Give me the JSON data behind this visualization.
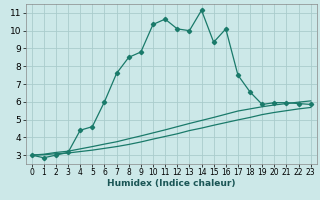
{
  "xlabel": "Humidex (Indice chaleur)",
  "background_color": "#cce8e8",
  "grid_color": "#aacccc",
  "line_color": "#1a7a6a",
  "xlim": [
    -0.5,
    23.5
  ],
  "ylim": [
    2.5,
    11.5
  ],
  "xticks": [
    0,
    1,
    2,
    3,
    4,
    5,
    6,
    7,
    8,
    9,
    10,
    11,
    12,
    13,
    14,
    15,
    16,
    17,
    18,
    19,
    20,
    21,
    22,
    23
  ],
  "yticks": [
    3,
    4,
    5,
    6,
    7,
    8,
    9,
    10,
    11
  ],
  "line1_x": [
    0,
    1,
    2,
    3,
    4,
    5,
    6,
    7,
    8,
    9,
    10,
    11,
    12,
    13,
    14,
    15,
    16,
    17,
    18,
    19,
    20,
    21,
    22,
    23
  ],
  "line1_y": [
    3.0,
    2.85,
    3.0,
    3.15,
    4.4,
    4.6,
    6.0,
    7.6,
    8.5,
    8.8,
    10.35,
    10.65,
    10.1,
    10.0,
    11.15,
    9.35,
    10.1,
    7.5,
    6.55,
    5.85,
    5.95,
    5.95,
    5.9,
    5.85
  ],
  "line2_x": [
    0,
    1,
    2,
    3,
    4,
    5,
    6,
    7,
    8,
    9,
    10,
    11,
    12,
    13,
    14,
    15,
    16,
    17,
    18,
    19,
    20,
    21,
    22,
    23
  ],
  "line2_y": [
    3.0,
    3.05,
    3.15,
    3.22,
    3.35,
    3.48,
    3.62,
    3.75,
    3.92,
    4.08,
    4.25,
    4.42,
    4.6,
    4.78,
    4.95,
    5.12,
    5.3,
    5.48,
    5.6,
    5.72,
    5.82,
    5.9,
    5.98,
    6.05
  ],
  "line3_x": [
    0,
    1,
    2,
    3,
    4,
    5,
    6,
    7,
    8,
    9,
    10,
    11,
    12,
    13,
    14,
    15,
    16,
    17,
    18,
    19,
    20,
    21,
    22,
    23
  ],
  "line3_y": [
    3.0,
    3.02,
    3.08,
    3.12,
    3.2,
    3.28,
    3.38,
    3.48,
    3.6,
    3.74,
    3.9,
    4.05,
    4.2,
    4.38,
    4.52,
    4.68,
    4.83,
    4.98,
    5.12,
    5.28,
    5.4,
    5.5,
    5.6,
    5.68
  ]
}
